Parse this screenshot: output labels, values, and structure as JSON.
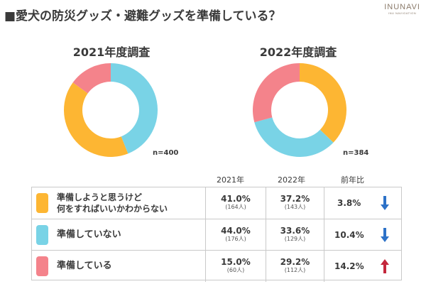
{
  "page": {
    "title": "■愛犬の防災グッズ・避難グッズを準備している？",
    "logo_text": "INUNAVI",
    "logo_subtext": "INU NAVIGATION"
  },
  "colors": {
    "orange": "#FDB633",
    "blue": "#79D3E6",
    "pink": "#F4838B",
    "arrow_down": "#2D72C8",
    "arrow_up": "#C4273C"
  },
  "chart_data": [
    {
      "type": "pie",
      "style": "donut",
      "title": "2021年度調査",
      "n_label": "n=400",
      "categories": [
        "準備しようと思うけど何をすればいいかわからない",
        "準備していない",
        "準備している"
      ],
      "values": [
        41.0,
        44.0,
        15.0
      ],
      "slice_order_clockwise_from_top": [
        "準備していない",
        "準備しようと思うけど何をすればいいかわからない",
        "準備している"
      ]
    },
    {
      "type": "pie",
      "style": "donut",
      "title": "2022年度調査",
      "n_label": "n=384",
      "categories": [
        "準備しようと思うけど何をすればいいかわからない",
        "準備していない",
        "準備している"
      ],
      "values": [
        37.2,
        33.6,
        29.2
      ],
      "slice_order_clockwise_from_top": [
        "準備しようと思うけど何をすればいいかわからない",
        "準備していない",
        "準備している"
      ]
    }
  ],
  "table": {
    "headers": [
      "2021年",
      "2022年",
      "前年比"
    ],
    "rows": [
      {
        "label_lines": [
          "準備しようと思うけど",
          "何をすればいいかわからない"
        ],
        "color": "#FDB633",
        "pct_2021": "41.0%",
        "cnt_2021": "(164人)",
        "pct_2022": "37.2%",
        "cnt_2022": "(143人)",
        "ratio": "3.8%",
        "direction": "down"
      },
      {
        "label_lines": [
          "準備していない"
        ],
        "color": "#79D3E6",
        "pct_2021": "44.0%",
        "cnt_2021": "(176人)",
        "pct_2022": "33.6%",
        "cnt_2022": "(129人)",
        "ratio": "10.4%",
        "direction": "down"
      },
      {
        "label_lines": [
          "準備している"
        ],
        "color": "#F4838B",
        "pct_2021": "15.0%",
        "cnt_2021": "(60人)",
        "pct_2022": "29.2%",
        "cnt_2022": "(112人)",
        "ratio": "14.2%",
        "direction": "up"
      }
    ]
  }
}
